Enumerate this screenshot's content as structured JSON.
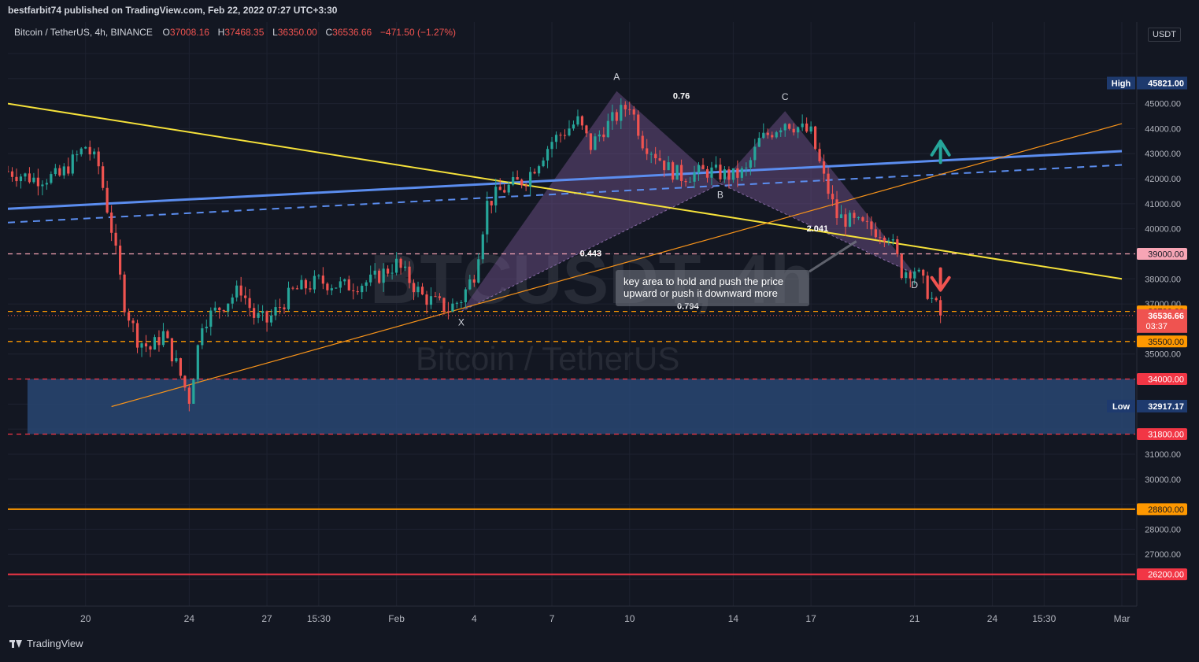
{
  "header": {
    "published": "bestfarbit74 published on TradingView.com, Feb 22, 2022 07:27 UTC+3:30"
  },
  "legend": {
    "symbol": "Bitcoin / TetherUS, 4h, BINANCE",
    "o_label": "O",
    "o": "37008.16",
    "h_label": "H",
    "h": "37468.35",
    "l_label": "L",
    "l": "36350.00",
    "c_label": "C",
    "c": "36536.66",
    "change": "−471.50 (−1.27%)"
  },
  "watermark": {
    "ticker": "BTCUSDT, 4h",
    "name": "Bitcoin / TetherUS"
  },
  "currency": "USDT",
  "footer": {
    "brand": "TradingView"
  },
  "colors": {
    "background": "#131722",
    "up": "#26a69a",
    "down": "#ef5350",
    "yellow_trend": "#f5e13a",
    "orange_trend": "#f7931a",
    "channel_blue": "#5b8def",
    "zone_blue": "#2a4a7a",
    "pattern_purple": "#7e5a9b",
    "red_level": "#f23645",
    "orange_level": "#ff9800"
  },
  "chart_data": {
    "type": "candlestick",
    "symbol": "BTCUSDT",
    "interval": "4h",
    "y_axis": {
      "ticks": [
        26000,
        27000,
        28000,
        29000,
        30000,
        31000,
        32000,
        33000,
        34000,
        35000,
        36000,
        37000,
        38000,
        39000,
        40000,
        41000,
        42000,
        43000,
        44000,
        45000,
        46000,
        47000
      ],
      "visible_labels": [
        "27000.00",
        "28000.00",
        "30000.00",
        "31000.00",
        "35000.00",
        "36000.00",
        "37000.00",
        "38000.00",
        "40000.00",
        "41000.00",
        "42000.00",
        "43000.00",
        "44000.00",
        "45000.00"
      ],
      "range": [
        25500,
        47800
      ]
    },
    "x_axis": {
      "labels": [
        {
          "label": "20",
          "date": "2022-01-20"
        },
        {
          "label": "24",
          "date": "2022-01-24"
        },
        {
          "label": "27",
          "date": "2022-01-27"
        },
        {
          "label": "15:30",
          "date": "2022-01-29"
        },
        {
          "label": "Feb",
          "date": "2022-02-01"
        },
        {
          "label": "4",
          "date": "2022-02-04"
        },
        {
          "label": "7",
          "date": "2022-02-07"
        },
        {
          "label": "10",
          "date": "2022-02-10"
        },
        {
          "label": "14",
          "date": "2022-02-14"
        },
        {
          "label": "17",
          "date": "2022-02-17"
        },
        {
          "label": "21",
          "date": "2022-02-21"
        },
        {
          "label": "24",
          "date": "2022-02-24"
        },
        {
          "label": "15:30",
          "date": "2022-02-26"
        },
        {
          "label": "Mar",
          "date": "2022-03-01"
        }
      ]
    },
    "price_path": [
      [
        "2022-01-17",
        42300
      ],
      [
        "2022-01-18",
        42000
      ],
      [
        "2022-01-19",
        42100
      ],
      [
        "2022-01-20",
        43300
      ],
      [
        "2022-01-20 12:00",
        42500
      ],
      [
        "2022-01-21",
        40000
      ],
      [
        "2022-01-21 12:00",
        37000
      ],
      [
        "2022-01-22",
        35600
      ],
      [
        "2022-01-22 12:00",
        35200
      ],
      [
        "2022-01-23",
        35800
      ],
      [
        "2022-01-23 12:00",
        34600
      ],
      [
        "2022-01-24",
        33200
      ],
      [
        "2022-01-24 12:00",
        36300
      ],
      [
        "2022-01-25",
        36700
      ],
      [
        "2022-01-26",
        37600
      ],
      [
        "2022-01-26 12:00",
        36500
      ],
      [
        "2022-01-27",
        36300
      ],
      [
        "2022-01-28",
        37500
      ],
      [
        "2022-01-29",
        37900
      ],
      [
        "2022-01-30",
        37700
      ],
      [
        "2022-01-31",
        37900
      ],
      [
        "2022-02-01",
        38600
      ],
      [
        "2022-02-02",
        37300
      ],
      [
        "2022-02-03",
        36800
      ],
      [
        "2022-02-03 12:00",
        37200
      ],
      [
        "2022-02-04",
        38200
      ],
      [
        "2022-02-04 12:00",
        41000
      ],
      [
        "2022-02-05",
        41500
      ],
      [
        "2022-02-06",
        42000
      ],
      [
        "2022-02-07",
        43500
      ],
      [
        "2022-02-08",
        44300
      ],
      [
        "2022-02-08 12:00",
        43300
      ],
      [
        "2022-02-09",
        44000
      ],
      [
        "2022-02-10",
        45000
      ],
      [
        "2022-02-10 12:00",
        43500
      ],
      [
        "2022-02-11",
        43000
      ],
      [
        "2022-02-11 12:00",
        42400
      ],
      [
        "2022-02-12",
        42100
      ],
      [
        "2022-02-13",
        42300
      ],
      [
        "2022-02-14",
        42100
      ],
      [
        "2022-02-14 12:00",
        42300
      ],
      [
        "2022-02-15",
        43500
      ],
      [
        "2022-02-16",
        44300
      ],
      [
        "2022-02-17",
        43800
      ],
      [
        "2022-02-17 12:00",
        42000
      ],
      [
        "2022-02-18",
        40500
      ],
      [
        "2022-02-19",
        40100
      ],
      [
        "2022-02-20",
        39800
      ],
      [
        "2022-02-20 12:00",
        38300
      ],
      [
        "2022-02-21",
        38400
      ],
      [
        "2022-02-21 12:00",
        37500
      ],
      [
        "2022-02-22",
        36536.66
      ]
    ],
    "horizontal_levels": [
      {
        "value": 39000,
        "label": "39000.00",
        "style": "dashed",
        "color": "#f7a5b5"
      },
      {
        "value": 36700,
        "label": "36700.00",
        "style": "dashed",
        "color": "#ff9800"
      },
      {
        "value": 35500,
        "label": "35500.00",
        "style": "dashed",
        "color": "#ff9800"
      },
      {
        "value": 34000,
        "label": "34000.00",
        "style": "dashed",
        "color": "#f23645"
      },
      {
        "value": 31800,
        "label": "31800.00",
        "style": "dashed",
        "color": "#f23645"
      },
      {
        "value": 28800,
        "label": "28800.00",
        "style": "solid",
        "color": "#ff9800"
      },
      {
        "value": 26200,
        "label": "26200.00",
        "style": "solid",
        "color": "#f23645"
      }
    ],
    "price_tags": {
      "high": {
        "label": "High",
        "value": "45821.00"
      },
      "low": {
        "label": "Low",
        "value": "32917.17"
      },
      "current": {
        "value": "36536.66",
        "countdown": "03:37"
      }
    },
    "zone": {
      "from": 31800,
      "to": 34000,
      "start": "2022-01-18"
    },
    "trendlines": [
      {
        "name": "yellow",
        "from": [
          "2022-01-17",
          45000
        ],
        "to": [
          "2022-03-01",
          38000
        ]
      },
      {
        "name": "orange",
        "from": [
          "2022-01-21",
          32900
        ],
        "to": [
          "2022-03-01",
          44200
        ]
      },
      {
        "name": "blue",
        "from": [
          "2022-01-17",
          40800
        ],
        "to": [
          "2022-03-01",
          43100
        ]
      },
      {
        "name": "blue-dashed",
        "from": [
          "2022-01-17",
          40250
        ],
        "to": [
          "2022-03-01",
          42550
        ]
      }
    ],
    "harmonic_pattern": {
      "points": [
        {
          "label": "X",
          "date": "2022-02-03 12:00",
          "price": 36700
        },
        {
          "label": "A",
          "date": "2022-02-09 12:00",
          "price": 45500
        },
        {
          "label": "B",
          "date": "2022-02-13 12:00",
          "price": 41800
        },
        {
          "label": "C",
          "date": "2022-02-16",
          "price": 44700
        },
        {
          "label": "D",
          "date": "2022-02-21",
          "price": 38200
        }
      ],
      "ratios": [
        {
          "label": "0.76",
          "date": "2022-02-12",
          "price": 45200
        },
        {
          "label": "0.443",
          "date": "2022-02-08 12:00",
          "price": 38900
        },
        {
          "label": "2.041",
          "date": "2022-02-17 06:00",
          "price": 39900
        },
        {
          "label": "0.794",
          "date": "2022-02-12 06:00",
          "price": 36800
        }
      ]
    },
    "annotation": {
      "line1": "key area to hold  and push the price",
      "line2": "upward or push it downward more"
    }
  }
}
